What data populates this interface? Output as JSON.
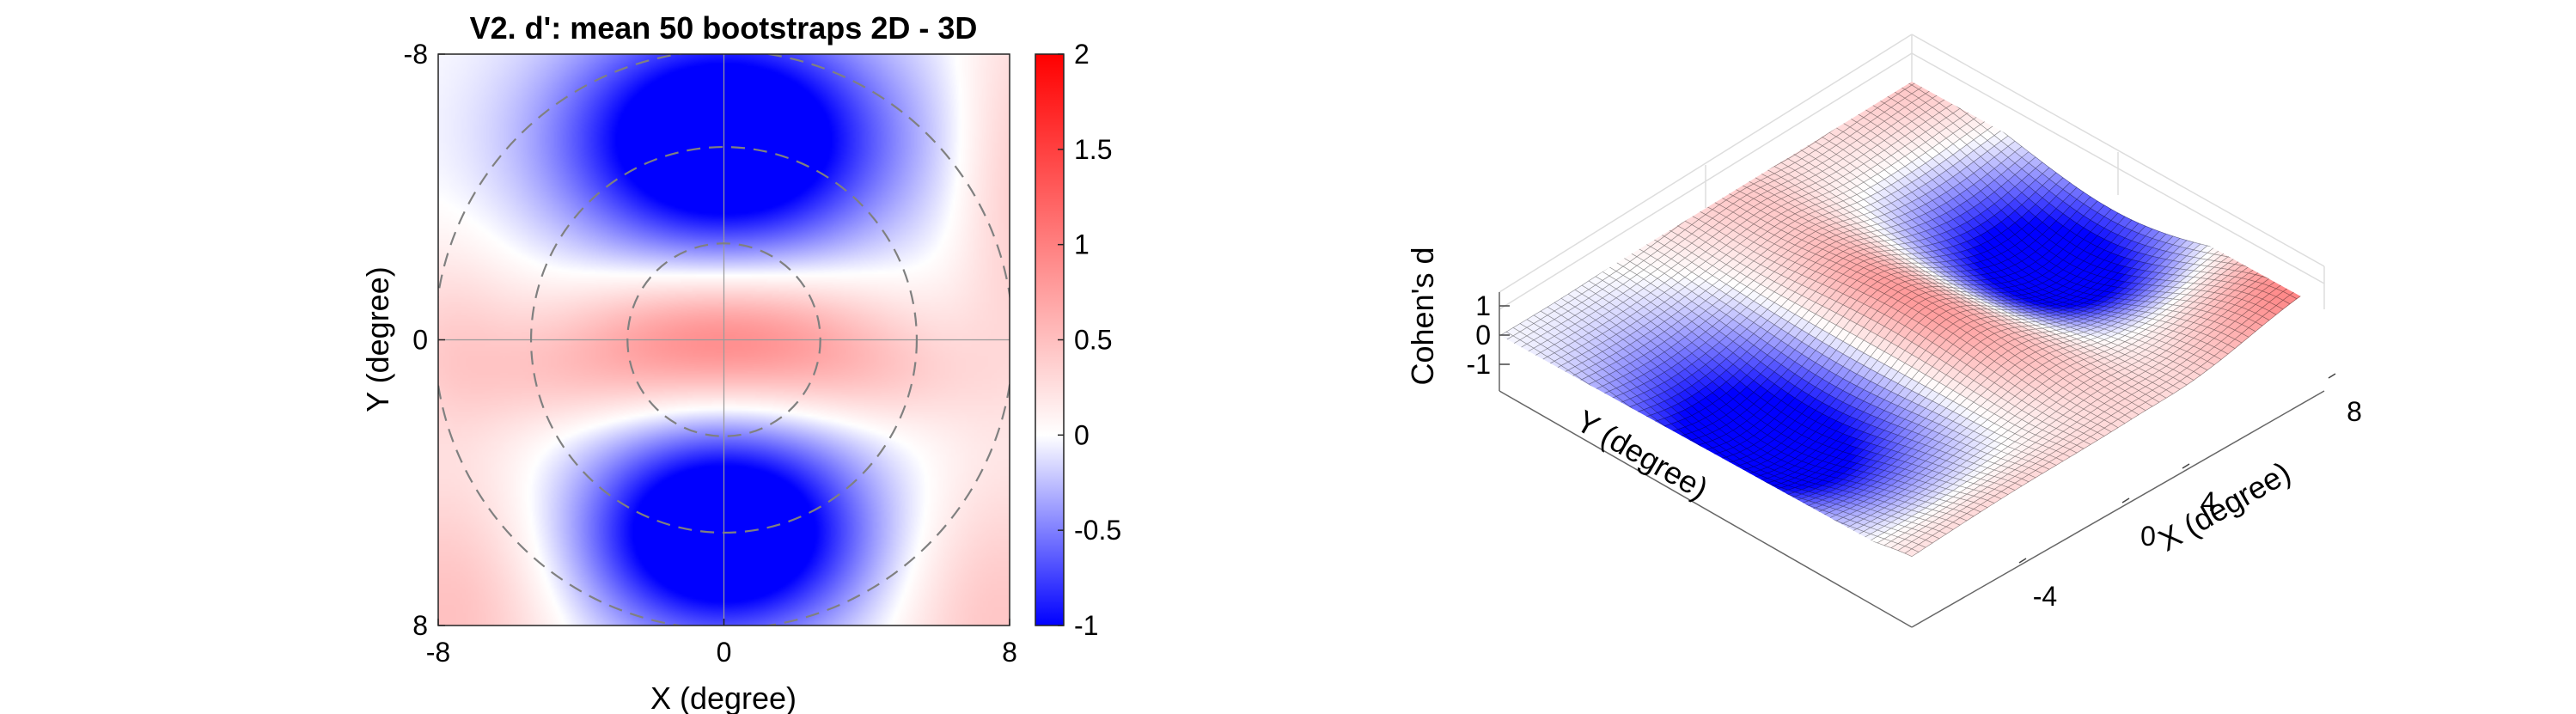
{
  "chart_data": [
    {
      "type": "heatmap",
      "title": "V2. d': mean 50 bootstraps 2D - 3D",
      "xlabel": "X (degree)",
      "ylabel": "Y (degree)",
      "xlim": [
        -8,
        8
      ],
      "ylim": [
        -8,
        8
      ],
      "y_direction": "reversed",
      "x_ticks": [
        -8,
        0,
        8
      ],
      "y_ticks": [
        -8,
        0,
        8
      ],
      "colorbar": {
        "range": [
          -1,
          2
        ],
        "ticks": [
          -1,
          -0.5,
          0,
          0.5,
          1,
          1.5,
          2
        ],
        "tick_labels": [
          "-1",
          "-0.5",
          "0",
          "0.5",
          "1",
          "1.5",
          "2"
        ],
        "colormap": [
          "#0000ff",
          "#ffffff",
          "#ff0000"
        ]
      },
      "guide_circle_radii_deg": [
        2.7,
        5.4,
        8.1
      ],
      "crosshair": true,
      "field_features": [
        {
          "region": "upper center",
          "value": -1
        },
        {
          "region": "central ring",
          "value": 0.7
        },
        {
          "region": "lower center",
          "value": -1
        },
        {
          "region": "lower corners",
          "value": 0.4
        }
      ]
    },
    {
      "type": "surface",
      "zlabel": "Cohen's d",
      "xlabel": "X (degree)",
      "ylabel": "Y (degree)",
      "z_ticks": [
        -1,
        0,
        1
      ],
      "x_tick_labels": [
        "-4",
        "0",
        "4",
        "8"
      ],
      "colormap": [
        "#0000ff",
        "#ffffff",
        "#ff0000"
      ]
    }
  ]
}
